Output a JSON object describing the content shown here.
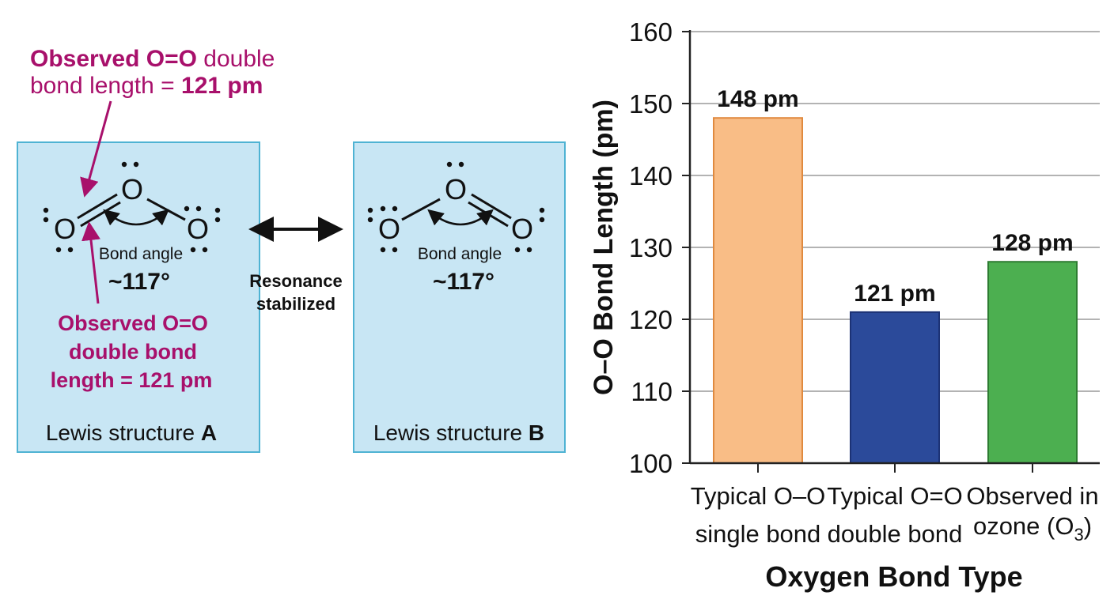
{
  "annotations": {
    "top_line1_bold": "Observed O=O",
    "top_line1_rest": " double",
    "top_line2_rest": "bond length = ",
    "top_line2_bold": "121 pm",
    "lower_line1": "Observed O=O",
    "lower_line2": "double bond",
    "lower_line3": "length = 121 pm",
    "color": "#a8106b"
  },
  "structures": [
    {
      "atom_symbol": "O",
      "angle_label": "Bond angle",
      "angle_value": "~117°",
      "caption_prefix": "Lewis structure ",
      "caption_letter": "A"
    },
    {
      "atom_symbol": "O",
      "angle_label": "Bond angle",
      "angle_value": "~117°",
      "caption_prefix": "Lewis structure ",
      "caption_letter": "B"
    }
  ],
  "resonance": {
    "line1": "Resonance",
    "line2": "stabilized"
  },
  "colors": {
    "panel_fill": "#c8e6f4",
    "panel_border": "#4fb3d3",
    "grid": "#9a9a9a",
    "axis": "#222222"
  },
  "chart_data": {
    "type": "bar",
    "title": "",
    "xlabel": "Oxygen Bond Type",
    "ylabel": "O–O Bond Length (pm)",
    "ylim": [
      100,
      160
    ],
    "yticks": [
      100,
      110,
      120,
      130,
      140,
      150,
      160
    ],
    "grid": true,
    "categories": [
      {
        "line1": "Typical O–O",
        "line2": "single bond"
      },
      {
        "line1": "Typical O=O",
        "line2": "double bond"
      },
      {
        "line1": "Observed in",
        "line2_text": "ozone (O",
        "line2_sub": "3",
        "line2_end": ")"
      }
    ],
    "values": [
      148,
      121,
      128
    ],
    "value_labels": [
      "148 pm",
      "121 pm",
      "128 pm"
    ],
    "bar_colors": [
      {
        "fill": "#f9bd86",
        "stroke": "#e08a3f"
      },
      {
        "fill": "#2b4a9a",
        "stroke": "#1c3275"
      },
      {
        "fill": "#4caf50",
        "stroke": "#2e7d32"
      }
    ]
  }
}
